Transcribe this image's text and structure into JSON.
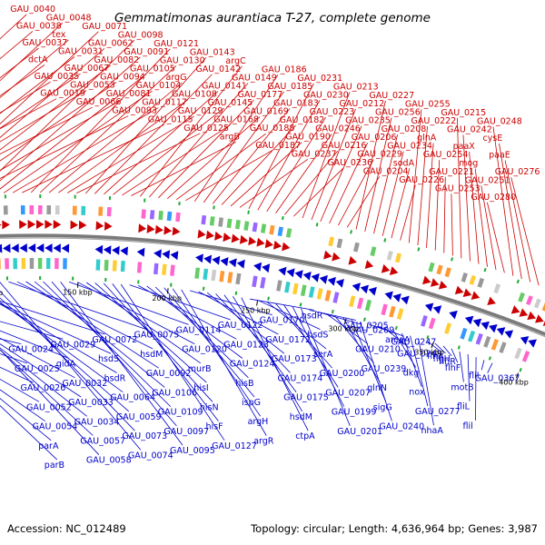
{
  "title": "Gemmatimonas aurantiaca T-27, complete genome",
  "footer_left": "Accession: NC_012489",
  "footer_right": "Topology: circular; Length: 4,636,964 bp; Genes: 3,987",
  "colors": {
    "forward": "#cc0000",
    "reverse": "#0000cc",
    "backbone": "#7a7a7a",
    "marker": "#22aa33"
  },
  "tick_labels": [
    "50 kbp",
    "100 kbp",
    "150 kbp",
    "200 kbp",
    "250 kbp",
    "300 kbp",
    "350 kbp",
    "400 kbp"
  ],
  "forward_labels": [
    "GAU_0040",
    "GAU_0038",
    "GAU_0037",
    "dctA",
    "GAU_0035",
    "GAU_0019",
    "GAU_0048",
    "tex",
    "GAU_0031",
    "GAU_0067",
    "GAU_0053",
    "GAU_0066",
    "GAU_0071",
    "GAU_0062",
    "GAU_0082",
    "GAU_0094",
    "GAU_0081",
    "GAU_0093",
    "GAU_0098",
    "GAU_0091",
    "GAU_0105",
    "GAU_0104",
    "GAU_0117",
    "GAU_0115",
    "GAU_0121",
    "GAU_0130",
    "argG",
    "GAU_0108",
    "GAU_0129",
    "GAU_0125",
    "GAU_0143",
    "GAU_0142",
    "GAU_0141",
    "GAU_0145",
    "GAU_0168",
    "argB",
    "argC",
    "GAU_0149",
    "GAU_0177",
    "GAU_0169",
    "GAU_0188",
    "GAU_0187",
    "GAU_0186",
    "GAU_0185",
    "GAU_0183",
    "GAU_0182",
    "GAU_0190",
    "GAU_0237",
    "GAU_0231",
    "GAU_0230",
    "GAU_0223",
    "GAU_0246",
    "GAU_0216",
    "GAU_0236",
    "GAU_0213",
    "GAU_0212",
    "GAU_0235",
    "GAU_0206",
    "GAU_0229",
    "GAU_0204",
    "GAU_0227",
    "GAU_0256",
    "GAU_0208",
    "GAU_0234",
    "sodA",
    "GAU_0226",
    "GAU_0255",
    "GAU_0222",
    "glnA",
    "GAU_0254",
    "GAU_0221",
    "GAU_0253",
    "GAU_0215",
    "GAU_0242",
    "paaX",
    "mog",
    "GAU_0251",
    "GAU_0280",
    "GAU_0248",
    "cysE",
    "paaE",
    "GAU_0276"
  ],
  "reverse_labels": [
    "GAU_0024",
    "GAU_0025",
    "GAU_0026",
    "GAU_0052",
    "GAU_0054",
    "parA",
    "parB",
    "GAU_0029",
    "gidA",
    "GAU_0032",
    "GAU_0033",
    "GAU_0034",
    "GAU_0057",
    "GAU_0058",
    "GAU_0072",
    "hsdS",
    "hsdR",
    "GAU_0064",
    "GAU_0059",
    "GAU_0073",
    "GAU_0074",
    "GAU_0075",
    "hsdM",
    "GAU_0092",
    "GAU_0106",
    "GAU_0109",
    "GAU_0097",
    "GAU_0095",
    "GAU_0114",
    "GAU_0120",
    "murB",
    "hisI",
    "hisN",
    "hisF",
    "GAU_0127",
    "GAU_0122",
    "GAU_0123",
    "GAU_0124",
    "hisB",
    "ispG",
    "argH",
    "argR",
    "GAU_0170",
    "GAU_0172",
    "GAU_0173",
    "GAU_0174",
    "GAU_0175",
    "hsdM",
    "ctpA",
    "hsdR",
    "hsdS",
    "serA",
    "GAU_0200",
    "GAU_0207",
    "GAU_0199",
    "GAU_0201",
    "GAU_0205",
    "GAU_0209",
    "GAU_0210",
    "GAU_0239",
    "glnN",
    "sigG",
    "GAU_0240",
    "amaA",
    "GAU_0247",
    "GAU_0249",
    "dkg",
    "nox",
    "GAU_0277",
    "nhaA",
    "flhA",
    "flgH",
    "flhR",
    "flhF",
    "motB",
    "fliL",
    "flil",
    "fliI",
    "GAU_0367"
  ]
}
